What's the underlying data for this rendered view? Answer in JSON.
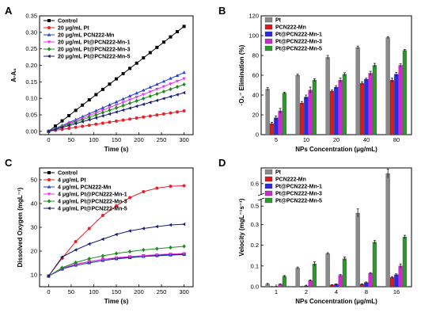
{
  "chart_data": [
    {
      "panel": "A",
      "type": "line",
      "xlabel": "Time (s)",
      "ylabel": "A-A₀",
      "xlim": [
        -20,
        320
      ],
      "ylim": [
        -0.01,
        0.35
      ],
      "xticks": [
        0,
        50,
        100,
        150,
        200,
        250,
        300
      ],
      "yticks": [
        0.0,
        0.05,
        0.1,
        0.15,
        0.2,
        0.25,
        0.3,
        0.35
      ],
      "legend_position": "top-left",
      "x": [
        0,
        15,
        30,
        45,
        60,
        75,
        90,
        105,
        120,
        135,
        150,
        165,
        180,
        195,
        210,
        225,
        240,
        255,
        270,
        285,
        300
      ],
      "series": [
        {
          "name": "Control",
          "color": "#000000",
          "marker": "square",
          "y_end": 0.318
        },
        {
          "name": "20 μg/mL Pt",
          "color": "#e8202a",
          "marker": "circle",
          "y_end": 0.062
        },
        {
          "name": "20 μg/mL PCN222-Mn",
          "color": "#1f3fd8",
          "marker": "triangle-up",
          "y_end": 0.178
        },
        {
          "name": "20 μg/mL Pt@PCN222-Mn-1",
          "color": "#e838e8",
          "marker": "triangle-down",
          "y_end": 0.16
        },
        {
          "name": "20 μg/mL Pt@PCN222-Mn-3",
          "color": "#1e8a1e",
          "marker": "diamond",
          "y_end": 0.142
        },
        {
          "name": "20 μg/mL Pt@PCN222-Mn-5",
          "color": "#1a1a7a",
          "marker": "triangle-left",
          "y_end": 0.117
        }
      ]
    },
    {
      "panel": "B",
      "type": "bar",
      "xlabel": "NPs Concentration (μg/mL)",
      "ylabel": "·O₂⁻ Elimination (%)",
      "ylim": [
        0,
        120
      ],
      "yticks": [
        0,
        20,
        40,
        60,
        80,
        100,
        120
      ],
      "legend_position": "top-left",
      "categories": [
        "5",
        "10",
        "20",
        "40",
        "80"
      ],
      "series": [
        {
          "name": "Pt",
          "color": "#8a8a8a",
          "values": [
            46,
            60,
            78,
            88,
            98
          ],
          "errors": [
            1.5,
            1,
            2,
            1.5,
            1
          ]
        },
        {
          "name": "PCN222-Mn",
          "color": "#d91a1a",
          "values": [
            11,
            32,
            44,
            52,
            55
          ],
          "errors": [
            1.5,
            1.5,
            1,
            1.5,
            2
          ]
        },
        {
          "name": "Pt@PCN222-Mn-1",
          "color": "#2a2ae0",
          "values": [
            17,
            38,
            48,
            56,
            61
          ],
          "errors": [
            2,
            2,
            1.5,
            1,
            2
          ]
        },
        {
          "name": "Pt@PCN222-Mn-3",
          "color": "#cc2acc",
          "values": [
            24,
            45,
            55,
            62,
            70
          ],
          "errors": [
            2.5,
            3,
            2,
            2,
            1.5
          ]
        },
        {
          "name": "Pt@PCN222-Mn-5",
          "color": "#2a9a2a",
          "values": [
            42,
            55,
            61,
            70,
            85
          ],
          "errors": [
            1,
            1.5,
            1.5,
            2,
            1
          ]
        }
      ]
    },
    {
      "panel": "C",
      "type": "line",
      "xlabel": "Time (s)",
      "ylabel": "Dissolved Oxygen (mgL⁻¹)",
      "xlim": [
        -20,
        320
      ],
      "ylim": [
        5,
        55
      ],
      "xticks": [
        0,
        50,
        100,
        150,
        200,
        250,
        300
      ],
      "yticks": [
        10,
        20,
        30,
        40,
        50
      ],
      "legend_position": "top-left",
      "x": [
        0,
        30,
        60,
        90,
        120,
        150,
        180,
        210,
        240,
        270,
        300
      ],
      "series": [
        {
          "name": "Control",
          "color": "#000000",
          "marker": "square",
          "values": [
            9.5,
            12.5,
            14.5,
            15.5,
            16.5,
            17.0,
            17.5,
            18.0,
            18.2,
            18.5,
            18.7
          ]
        },
        {
          "name": "4 μg/mL Pt",
          "color": "#e8202a",
          "marker": "circle",
          "values": [
            9.5,
            17.0,
            24.0,
            29.5,
            35.0,
            39.0,
            42.5,
            45.0,
            46.5,
            47.3,
            47.5
          ]
        },
        {
          "name": "4 μg/mL PCN222-Mn",
          "color": "#1f3fd8",
          "marker": "triangle-up",
          "values": [
            9.5,
            12.5,
            14.0,
            15.0,
            16.0,
            16.7,
            17.2,
            17.7,
            18.0,
            18.3,
            18.5
          ]
        },
        {
          "name": "4 μg/mL Pt@PCN222-Mn-1",
          "color": "#e838e8",
          "marker": "triangle-down",
          "values": [
            9.5,
            12.8,
            14.5,
            15.6,
            16.5,
            17.2,
            17.7,
            18.1,
            18.5,
            18.8,
            19.0
          ]
        },
        {
          "name": "4 μg/mL Pt@PCN222-Mn-3",
          "color": "#1e8a1e",
          "marker": "diamond",
          "values": [
            9.5,
            13.0,
            15.2,
            16.8,
            18.0,
            19.0,
            19.8,
            20.5,
            21.0,
            21.5,
            22.0
          ]
        },
        {
          "name": "4 μg/mL Pt@PCN222-Mn-5",
          "color": "#1a1a7a",
          "marker": "triangle-left",
          "values": [
            9.5,
            17.5,
            20.5,
            23.0,
            25.0,
            27.0,
            28.5,
            29.5,
            30.3,
            31.0,
            31.3
          ]
        }
      ]
    },
    {
      "panel": "D",
      "type": "bar",
      "xlabel": "NPs Concentration (μg/mL)",
      "ylabel": "Velocity (mgL⁻¹s⁻¹)",
      "axis_break": [
        0.42,
        0.55
      ],
      "ylim": [
        0,
        0.65
      ],
      "yticks": [
        0.0,
        0.1,
        0.2,
        0.3,
        0.5,
        0.6
      ],
      "legend_position": "top-left",
      "categories": [
        "1",
        "2",
        "4",
        "8",
        "16"
      ],
      "series": [
        {
          "name": "Pt",
          "color": "#8a8a8a",
          "values": [
            0.013,
            0.09,
            0.16,
            0.355,
            0.645
          ],
          "errors": [
            0.003,
            0.005,
            0.004,
            0.02,
            0.02
          ]
        },
        {
          "name": "PCN222-Mn",
          "color": "#d91a1a",
          "values": [
            0.0,
            0.0,
            0.008,
            0.012,
            0.045
          ],
          "errors": [
            0.001,
            0.001,
            0.002,
            0.002,
            0.004
          ]
        },
        {
          "name": "Pt@PCN222-Mn-1",
          "color": "#2a2ae0",
          "values": [
            0.0,
            0.004,
            0.012,
            0.02,
            0.058
          ],
          "errors": [
            0.001,
            0.001,
            0.002,
            0.003,
            0.004
          ]
        },
        {
          "name": "Pt@PCN222-Mn-3",
          "color": "#cc2acc",
          "values": [
            0.012,
            0.03,
            0.055,
            0.065,
            0.1
          ],
          "errors": [
            0.002,
            0.003,
            0.004,
            0.003,
            0.01
          ]
        },
        {
          "name": "Pt@PCN222-Mn-5",
          "color": "#2a9a2a",
          "values": [
            0.05,
            0.11,
            0.135,
            0.215,
            0.24
          ],
          "errors": [
            0.004,
            0.01,
            0.008,
            0.008,
            0.008
          ]
        }
      ]
    }
  ]
}
